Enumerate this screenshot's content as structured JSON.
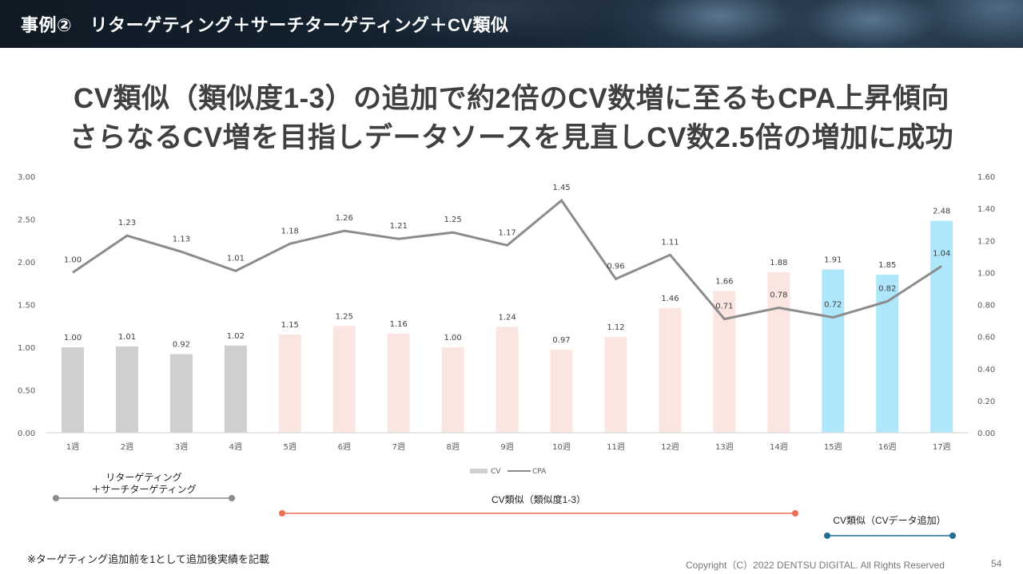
{
  "header": {
    "title": "事例②　リターゲティング＋サーチターゲティング＋CV類似"
  },
  "headline": {
    "line1": "CV類似（類似度1-3）の追加で約2倍のCV数増に至るもCPA上昇傾向",
    "line2": "さらなるCV増を目指しデータソースを見直しCV数2.5倍の増加に成功"
  },
  "chart_data": {
    "type": "bar",
    "title": "",
    "xlabel": "",
    "ylabel": "",
    "categories": [
      "1週",
      "2週",
      "3週",
      "4週",
      "5週",
      "6週",
      "7週",
      "8週",
      "9週",
      "10週",
      "11週",
      "12週",
      "13週",
      "14週",
      "15週",
      "16週",
      "17週"
    ],
    "series": [
      {
        "name": "CV",
        "type": "bar",
        "axis": "left",
        "values": [
          1.0,
          1.01,
          0.92,
          1.02,
          1.15,
          1.25,
          1.16,
          1.0,
          1.24,
          0.97,
          1.12,
          1.46,
          1.66,
          1.88,
          1.91,
          1.85,
          2.48
        ],
        "labels": [
          "1.00",
          "1.01",
          "0.92",
          "1.02",
          "1.15",
          "1.25",
          "1.16",
          "1.00",
          "1.24",
          "0.97",
          "1.12",
          "1.46",
          "1.66",
          "1.88",
          "1.91",
          "1.85",
          "2.48"
        ],
        "phase": [
          0,
          0,
          0,
          0,
          1,
          1,
          1,
          1,
          1,
          1,
          1,
          1,
          1,
          1,
          2,
          2,
          2
        ]
      },
      {
        "name": "CPA",
        "type": "line",
        "axis": "right",
        "values": [
          1.0,
          1.23,
          1.13,
          1.01,
          1.18,
          1.26,
          1.21,
          1.25,
          1.17,
          1.45,
          0.96,
          1.11,
          0.71,
          0.78,
          0.72,
          0.82,
          1.04
        ],
        "labels": [
          "1.00",
          "1.23",
          "1.13",
          "1.01",
          "1.18",
          "1.26",
          "1.21",
          "1.25",
          "1.17",
          "1.45",
          "0.96",
          "1.11",
          "0.71",
          "0.78",
          "0.72",
          "0.82",
          "1.04"
        ]
      }
    ],
    "left_axis": {
      "ylim": [
        0,
        3.0
      ],
      "ticks": [
        "0.00",
        "0.50",
        "1.00",
        "1.50",
        "2.00",
        "2.50",
        "3.00"
      ]
    },
    "right_axis": {
      "ylim": [
        0,
        1.6
      ],
      "ticks": [
        "0.00",
        "0.20",
        "0.40",
        "0.60",
        "0.80",
        "1.00",
        "1.20",
        "1.40",
        "1.60"
      ]
    },
    "grid": false,
    "legend": {
      "position": "bottom",
      "items": [
        "CV",
        "CPA"
      ]
    },
    "colors": {
      "phase_bars": [
        "#d0cecf",
        "#fbe5e1",
        "#aee6fb"
      ],
      "cpa_line": "#8c8c8c",
      "axis": "#d9d9d9"
    }
  },
  "phases": [
    {
      "label_line1": "リターゲティング",
      "label_line2": "＋サーチターゲティング",
      "color": "#8c8c8c"
    },
    {
      "label_line1": "CV類似（類似度1-3）",
      "label_line2": "",
      "color": "#ef6e55"
    },
    {
      "label_line1": "CV類似（CVデータ追加）",
      "label_line2": "",
      "color": "#1f6e94"
    }
  ],
  "footer": {
    "note": "※ターゲティング追加前を1として追加後実績を記載",
    "copyright": "Copyright（C）2022 DENTSU DIGITAL. All Rights Reserved",
    "page": "54"
  }
}
